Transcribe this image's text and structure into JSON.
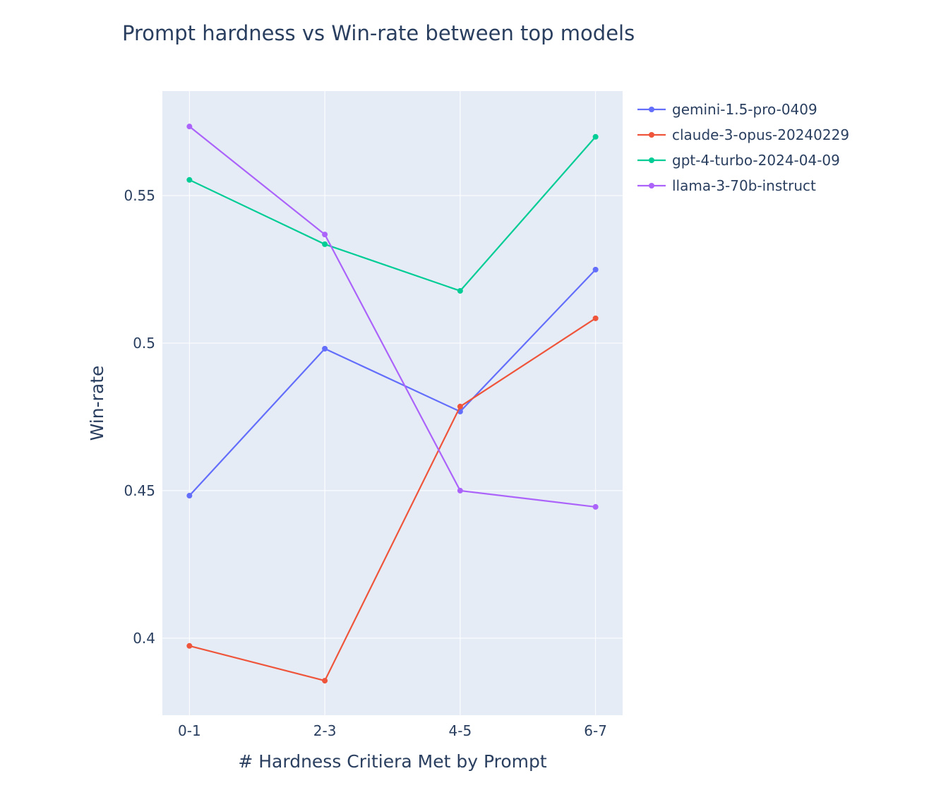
{
  "chart_data": {
    "type": "line",
    "title": "Prompt hardness vs Win-rate between top models",
    "xlabel": "# Hardness Critiera Met by Prompt",
    "ylabel": "Win-rate",
    "categories": [
      "0-1",
      "2-3",
      "4-5",
      "6-7"
    ],
    "ylim": [
      0.3739,
      0.5854
    ],
    "yticks": [
      0.4,
      0.45,
      0.5,
      0.55
    ],
    "ytick_labels": [
      "0.4",
      "0.45",
      "0.5",
      "0.55"
    ],
    "grid": true,
    "legend_position": "top-right outside",
    "series": [
      {
        "name": "gemini-1.5-pro-0409",
        "color": "#636efa",
        "values": [
          0.4483,
          0.4981,
          0.4768,
          0.5249
        ]
      },
      {
        "name": "claude-3-opus-20240229",
        "color": "#ef553b",
        "values": [
          0.3974,
          0.3856,
          0.4785,
          0.5084
        ]
      },
      {
        "name": "gpt-4-turbo-2024-04-09",
        "color": "#00cc96",
        "values": [
          0.5553,
          0.5335,
          0.5177,
          0.5699
        ]
      },
      {
        "name": "llama-3-70b-instruct",
        "color": "#ab63fa",
        "values": [
          0.5734,
          0.5368,
          0.45,
          0.4445
        ]
      }
    ]
  }
}
